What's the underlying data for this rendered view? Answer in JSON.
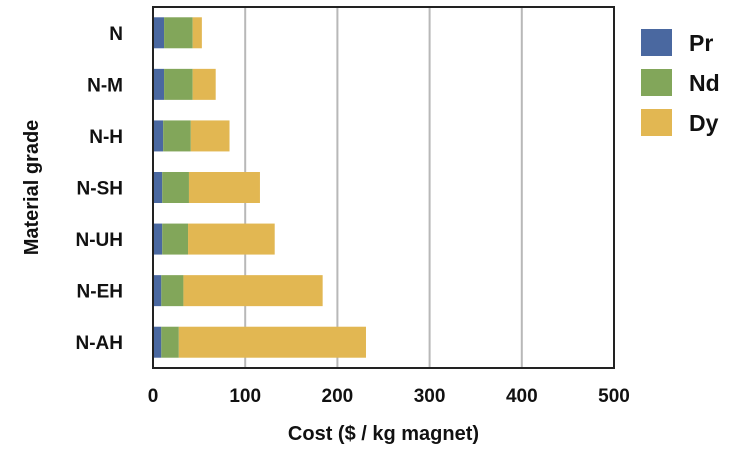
{
  "chart_data": {
    "type": "bar",
    "orientation": "horizontal",
    "stacked": true,
    "title": "",
    "xlabel": "Cost ($ / kg magnet)",
    "ylabel": "Material grade",
    "xlim": [
      0,
      500
    ],
    "xticks": [
      "0",
      "100",
      "200",
      "300",
      "400",
      "500"
    ],
    "grid": "vertical",
    "legend_position": "right",
    "categories": [
      "N",
      "N-M",
      "N-H",
      "N-SH",
      "N-UH",
      "N-EH",
      "N-AH"
    ],
    "series": [
      {
        "name": "Pr",
        "color": "#4a68a0",
        "values": [
          12,
          12,
          11,
          10,
          10,
          9,
          9
        ]
      },
      {
        "name": "Nd",
        "color": "#82a65a",
        "values": [
          31,
          31,
          30,
          29,
          28,
          24,
          19
        ]
      },
      {
        "name": "Dy",
        "color": "#e2b752",
        "values": [
          10,
          25,
          42,
          77,
          94,
          151,
          203
        ]
      }
    ]
  }
}
